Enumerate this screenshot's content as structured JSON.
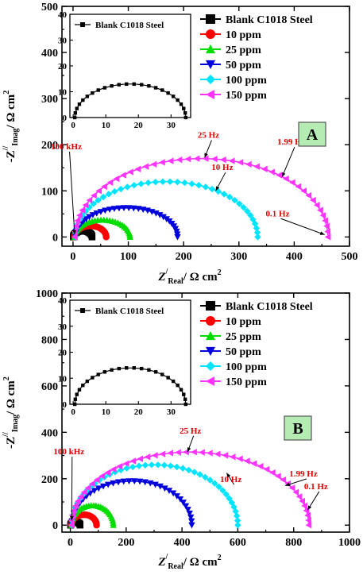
{
  "chart_data": [
    {
      "type": "scatter",
      "panel_label": "A",
      "ylabel_main": "-Z",
      "ylabel_sup": "//",
      "ylabel_sub": "Imag",
      "ylabel_unit": "/ Ω cm",
      "ylabel_exp": "2",
      "xlabel_main": "Z",
      "xlabel_sup": "/",
      "xlabel_sub": "Real",
      "xlabel_unit": "/ Ω cm",
      "xlabel_exp": "2",
      "xlim": [
        -20,
        500
      ],
      "ylim": [
        -20,
        500
      ],
      "xticks": [
        "0",
        "100",
        "200",
        "300",
        "400",
        "500"
      ],
      "yticks": [
        "0",
        "100",
        "200",
        "300",
        "400",
        "500"
      ],
      "xtick_values": [
        0,
        100,
        200,
        300,
        400,
        500
      ],
      "ytick_values": [
        0,
        100,
        200,
        300,
        400,
        500
      ],
      "series": [
        {
          "name": "Blank C1018 Steel",
          "color": "#000000",
          "marker": "square",
          "r_start": 0.5,
          "diameter": 34,
          "apex": 13,
          "points": 22
        },
        {
          "name": "10 ppm",
          "color": "#ff0000",
          "marker": "circle",
          "r_start": 3,
          "diameter": 57,
          "apex": 24,
          "points": 26
        },
        {
          "name": "25 ppm",
          "color": "#00dd00",
          "marker": "triangle-up",
          "r_start": 3,
          "diameter": 100,
          "apex": 37,
          "points": 30
        },
        {
          "name": "50 ppm",
          "color": "#0000dd",
          "marker": "triangle-down",
          "r_start": 4,
          "diameter": 185,
          "apex": 63,
          "points": 34
        },
        {
          "name": "100 ppm",
          "color": "#00e5ff",
          "marker": "diamond",
          "r_start": 4,
          "diameter": 330,
          "apex": 120,
          "points": 40
        },
        {
          "name": "150 ppm",
          "color": "#ff33ff",
          "marker": "triangle-left",
          "r_start": 3,
          "diameter": 458,
          "apex": 170,
          "points": 46
        }
      ],
      "annotations": [
        {
          "text": "100 kHz",
          "x": -12,
          "y": 190,
          "ax": 3,
          "ay": 5
        },
        {
          "text": "25 Hz",
          "x": 245,
          "y": 215,
          "ax": 238,
          "ay": 172
        },
        {
          "text": "10 Hz",
          "x": 270,
          "y": 145,
          "ax": 258,
          "ay": 100
        },
        {
          "text": "1.99 Hz",
          "x": 395,
          "y": 200,
          "ax": 378,
          "ay": 130
        },
        {
          "text": "0.1 Hz",
          "x": 370,
          "y": 45,
          "ax": 455,
          "ay": 5
        }
      ],
      "inset": {
        "legend": "Blank C1018 Steel",
        "xlim": [
          -1,
          36
        ],
        "ylim": [
          0,
          40
        ],
        "xticks": [
          "0",
          "10",
          "20",
          "30"
        ],
        "yticks": [
          "0",
          "10",
          "20",
          "30",
          "40"
        ],
        "xtick_values": [
          0,
          10,
          20,
          30
        ],
        "ytick_values": [
          0,
          10,
          20,
          30,
          40
        ],
        "r_start": 0.5,
        "diameter": 34,
        "apex": 13,
        "points": 24
      }
    },
    {
      "type": "scatter",
      "panel_label": "B",
      "ylabel_main": "-Z",
      "ylabel_sup": "//",
      "ylabel_sub": "Imag",
      "ylabel_unit": "/ Ω cm",
      "ylabel_exp": "2",
      "xlabel_main": "Z",
      "xlabel_sup": "/",
      "xlabel_sub": "Real",
      "xlabel_unit": "/ Ω cm",
      "xlabel_exp": "2",
      "xlim": [
        -30,
        1000
      ],
      "ylim": [
        -30,
        1000
      ],
      "xticks": [
        "0",
        "200",
        "400",
        "600",
        "800",
        "1000"
      ],
      "yticks": [
        "0",
        "200",
        "400",
        "600",
        "800",
        "1000"
      ],
      "xtick_values": [
        0,
        200,
        400,
        600,
        800,
        1000
      ],
      "ytick_values": [
        0,
        200,
        400,
        600,
        800,
        1000
      ],
      "series": [
        {
          "name": "Blank C1018 Steel",
          "color": "#000000",
          "marker": "square",
          "r_start": 1,
          "diameter": 34,
          "apex": 14,
          "points": 18
        },
        {
          "name": "10 ppm",
          "color": "#ff0000",
          "marker": "circle",
          "r_start": 4,
          "diameter": 90,
          "apex": 45,
          "points": 24
        },
        {
          "name": "25 ppm",
          "color": "#00dd00",
          "marker": "triangle-up",
          "r_start": 4,
          "diameter": 150,
          "apex": 85,
          "points": 28
        },
        {
          "name": "50 ppm",
          "color": "#0000dd",
          "marker": "triangle-down",
          "r_start": 5,
          "diameter": 430,
          "apex": 190,
          "points": 36
        },
        {
          "name": "100 ppm",
          "color": "#00e5ff",
          "marker": "diamond",
          "r_start": 5,
          "diameter": 595,
          "apex": 260,
          "points": 42
        },
        {
          "name": "150 ppm",
          "color": "#ff33ff",
          "marker": "triangle-left",
          "r_start": 4,
          "diameter": 850,
          "apex": 315,
          "points": 48
        }
      ],
      "annotations": [
        {
          "text": "100 kHz",
          "x": -5,
          "y": 305,
          "ax": 5,
          "ay": 20
        },
        {
          "text": "25 Hz",
          "x": 430,
          "y": 395,
          "ax": 420,
          "ay": 315
        },
        {
          "text": "10 Hz",
          "x": 575,
          "y": 185,
          "ax": 560,
          "ay": 225
        },
        {
          "text": "1.99 Hz",
          "x": 835,
          "y": 210,
          "ax": 770,
          "ay": 170
        },
        {
          "text": "0.1 Hz",
          "x": 880,
          "y": 155,
          "ax": 850,
          "ay": 65
        }
      ],
      "inset": {
        "legend": "Blank C1018 Steel",
        "xlim": [
          -1,
          36
        ],
        "ylim": [
          0,
          40
        ],
        "xticks": [
          "0",
          "10",
          "20",
          "30"
        ],
        "yticks": [
          "0",
          "10",
          "20",
          "30",
          "40"
        ],
        "xtick_values": [
          0,
          10,
          20,
          30
        ],
        "ytick_values": [
          0,
          10,
          20,
          30,
          40
        ],
        "r_start": 0.5,
        "diameter": 34,
        "apex": 14,
        "points": 24
      }
    }
  ]
}
